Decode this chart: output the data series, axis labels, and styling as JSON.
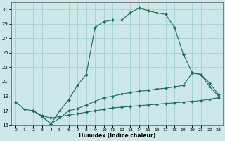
{
  "xlabel": "Humidex (Indice chaleur)",
  "bg_color": "#cce8e8",
  "line_color": "#1e6b5a",
  "grid_color": "#99cccc",
  "xlim_min": -0.5,
  "xlim_max": 23.5,
  "ylim_min": 15,
  "ylim_max": 32,
  "yticks": [
    15,
    17,
    19,
    21,
    23,
    25,
    27,
    29,
    31
  ],
  "xticks": [
    0,
    1,
    2,
    3,
    4,
    5,
    6,
    7,
    8,
    9,
    10,
    11,
    12,
    13,
    14,
    15,
    16,
    17,
    18,
    19,
    20,
    21,
    22,
    23
  ],
  "curve1_x": [
    0,
    1,
    2,
    3,
    4,
    5,
    6,
    7,
    8,
    9,
    10,
    11,
    12,
    13,
    14,
    15,
    16,
    17,
    18,
    19
  ],
  "curve1_y": [
    18.2,
    17.2,
    17.0,
    16.2,
    15.2,
    17.0,
    18.5,
    20.5,
    22.0,
    28.5,
    29.3,
    29.5,
    29.5,
    30.5,
    31.2,
    30.8,
    30.5,
    30.3,
    28.5,
    24.8
  ],
  "curve2_x": [
    19,
    20,
    21,
    22,
    23
  ],
  "curve2_y": [
    24.8,
    22.3,
    22.0,
    20.3,
    19.0
  ],
  "curve3_x": [
    2,
    3,
    4,
    5,
    6,
    7,
    8,
    9,
    10,
    11,
    12,
    13,
    14,
    15,
    16,
    17,
    18,
    19,
    20,
    21,
    22,
    23
  ],
  "curve3_y": [
    17.0,
    16.2,
    15.2,
    16.0,
    17.0,
    17.3,
    17.8,
    18.3,
    18.8,
    19.0,
    19.3,
    19.5,
    19.7,
    19.8,
    20.0,
    20.1,
    20.3,
    20.5,
    22.2,
    22.0,
    20.8,
    19.2
  ],
  "curve4_x": [
    2,
    3,
    4,
    5,
    6,
    7,
    8,
    9,
    10,
    11,
    12,
    13,
    14,
    15,
    16,
    17,
    18,
    19,
    20,
    21,
    22,
    23
  ],
  "curve4_y": [
    17.0,
    16.3,
    16.0,
    16.2,
    16.4,
    16.6,
    16.8,
    17.0,
    17.2,
    17.4,
    17.5,
    17.6,
    17.7,
    17.8,
    17.9,
    18.0,
    18.1,
    18.2,
    18.3,
    18.4,
    18.6,
    18.8
  ]
}
